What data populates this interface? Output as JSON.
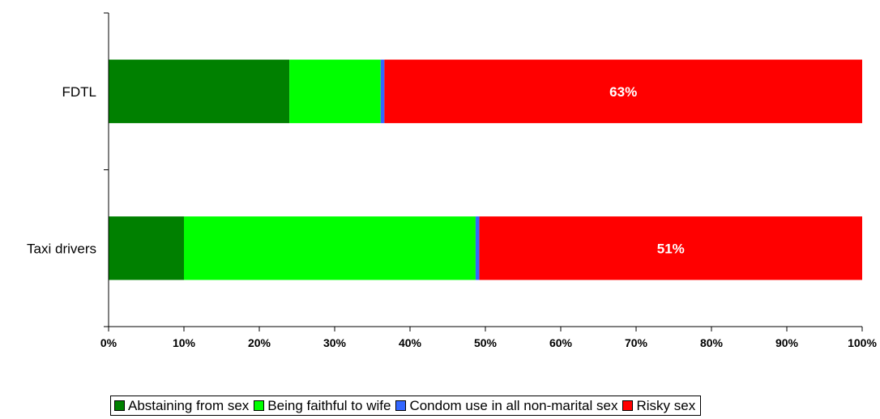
{
  "chart_data": {
    "type": "bar",
    "orientation": "horizontal",
    "stacked": true,
    "categories": [
      "FDTL",
      "Taxi drivers"
    ],
    "series": [
      {
        "name": "Abstaining from sex",
        "color": "#008000",
        "values": [
          24,
          10
        ]
      },
      {
        "name": "Being faithful to wife",
        "color": "#00FF00",
        "values": [
          12.1,
          38.7
        ]
      },
      {
        "name": "Condom use in all non-marital sex",
        "color": "#3366FF",
        "values": [
          0.5,
          0.5
        ]
      },
      {
        "name": "Risky sex",
        "color": "#FF0000",
        "values": [
          63.4,
          50.8
        ]
      }
    ],
    "data_labels": [
      {
        "category": "FDTL",
        "series": "Risky sex",
        "text": "63%"
      },
      {
        "category": "Taxi drivers",
        "series": "Risky sex",
        "text": "51%"
      }
    ],
    "x_ticks": [
      "0%",
      "10%",
      "20%",
      "30%",
      "40%",
      "50%",
      "60%",
      "70%",
      "80%",
      "90%",
      "100%"
    ],
    "xlim": [
      0,
      100
    ],
    "title": "",
    "xlabel": "",
    "ylabel": "",
    "grid": false,
    "legend_position": "bottom"
  }
}
